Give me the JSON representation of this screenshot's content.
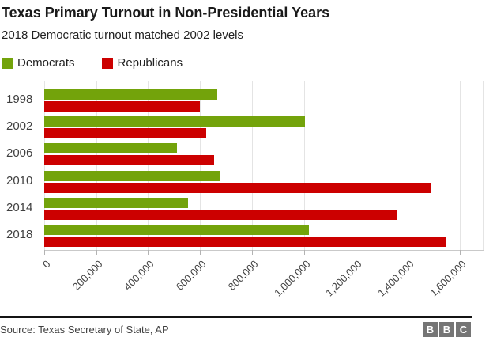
{
  "header": {
    "title": "Texas Primary Turnout in Non-Presidential Years",
    "subtitle": "2018 Democratic turnout matched 2002 levels"
  },
  "legend": [
    {
      "label": "Democrats",
      "color": "#73a30b"
    },
    {
      "label": "Republicans",
      "color": "#cc0000"
    }
  ],
  "chart_data": {
    "type": "bar",
    "orientation": "horizontal",
    "title": "Texas Primary Turnout in Non-Presidential Years",
    "subtitle": "2018 Democratic turnout matched 2002 levels",
    "categories": [
      "1998",
      "2002",
      "2006",
      "2010",
      "2014",
      "2018"
    ],
    "series": [
      {
        "name": "Democrats",
        "color": "#73a30b",
        "values": [
          665000,
          1005000,
          510000,
          680000,
          555000,
          1020000
        ]
      },
      {
        "name": "Republicans",
        "color": "#cc0000",
        "values": [
          600000,
          625000,
          655000,
          1490000,
          1360000,
          1545000
        ]
      }
    ],
    "xlabel": "",
    "ylabel": "",
    "xlim": [
      0,
      1600000
    ],
    "x_tick_interval": 200000,
    "x_tick_labels": [
      "0",
      "200,000",
      "400,000",
      "600,000",
      "800,000",
      "1,000,000",
      "1,200,000",
      "1,400,000",
      "1,600,000"
    ],
    "grid": "vertical",
    "legend_position": "top-left"
  },
  "footer": {
    "source": "Source: Texas Secretary of State, AP",
    "logo_letters": [
      "B",
      "B",
      "C"
    ]
  },
  "colors": {
    "democrats": "#73a30b",
    "republicans": "#cc0000",
    "gridline": "#e4e4e4",
    "axis_line": "#c9c9c9",
    "text_dark": "#1a1a1a",
    "text_gray": "#404040",
    "footer_line": "#141414",
    "logo_gray": "#757575"
  }
}
